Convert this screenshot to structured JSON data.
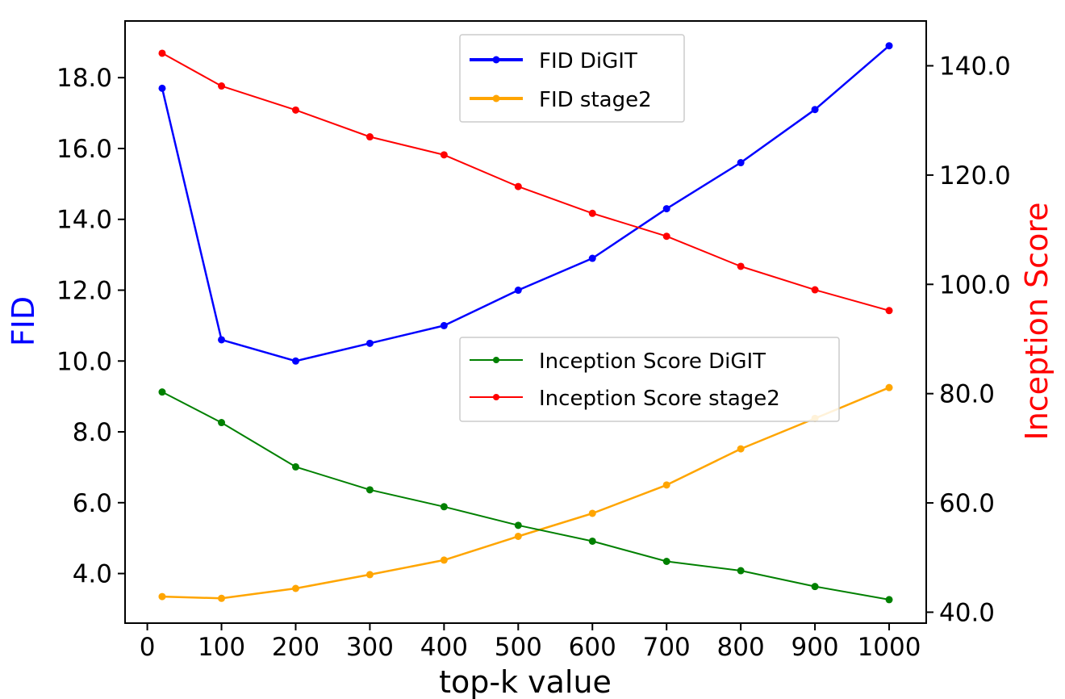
{
  "chart_data": {
    "type": "line",
    "xlabel": "top-k value",
    "ylabel_left": "FID",
    "ylabel_right": "Inception Score",
    "ylabel_left_color": "#0000ff",
    "ylabel_right_color": "#ff0000",
    "x": [
      20,
      100,
      200,
      300,
      400,
      500,
      600,
      700,
      800,
      900,
      1000
    ],
    "x_ticks": [
      0,
      100,
      200,
      300,
      400,
      500,
      600,
      700,
      800,
      900,
      1000
    ],
    "x_tick_labels": [
      "0",
      "100",
      "200",
      "300",
      "400",
      "500",
      "600",
      "700",
      "800",
      "900",
      "1000"
    ],
    "xlim": [
      -30,
      1050
    ],
    "y_left_ticks": [
      4,
      6,
      8,
      10,
      12,
      14,
      16,
      18
    ],
    "y_left_tick_labels": [
      "4.0",
      "6.0",
      "8.0",
      "10.0",
      "12.0",
      "14.0",
      "16.0",
      "18.0"
    ],
    "ylim_left": [
      2.6,
      19.6
    ],
    "y_right_ticks": [
      40,
      60,
      80,
      100,
      120,
      140
    ],
    "y_right_tick_labels": [
      "40.0",
      "60.0",
      "80.0",
      "100.0",
      "120.0",
      "140.0"
    ],
    "ylim_right": [
      38.0,
      148.2
    ],
    "grid": false,
    "series": [
      {
        "name": "FID DiGIT",
        "axis": "left",
        "color": "#0000ff",
        "values": [
          17.7,
          10.6,
          10.0,
          10.5,
          11.0,
          12.0,
          12.9,
          14.3,
          15.6,
          17.1,
          18.9
        ]
      },
      {
        "name": "FID stage2",
        "axis": "left",
        "color": "#ffa500",
        "values": [
          3.35,
          3.3,
          3.58,
          3.97,
          4.38,
          5.05,
          5.7,
          6.5,
          7.52,
          8.38,
          9.25
        ]
      },
      {
        "name": "Inception Score DiGIT",
        "axis": "right",
        "color": "#008000",
        "values": [
          80.3,
          74.7,
          66.6,
          62.4,
          59.3,
          55.9,
          53.0,
          49.3,
          47.6,
          44.7,
          42.3
        ]
      },
      {
        "name": "Inception Score stage2",
        "axis": "right",
        "color": "#ff0000",
        "values": [
          142.3,
          136.3,
          131.9,
          127.0,
          123.7,
          117.9,
          113.0,
          108.8,
          103.3,
          99.0,
          95.2
        ]
      }
    ],
    "legends": [
      {
        "placement": "top-center",
        "entries": [
          "FID DiGIT",
          "FID stage2"
        ]
      },
      {
        "placement": "center-right",
        "entries": [
          "Inception Score DiGIT",
          "Inception Score stage2"
        ]
      }
    ]
  }
}
